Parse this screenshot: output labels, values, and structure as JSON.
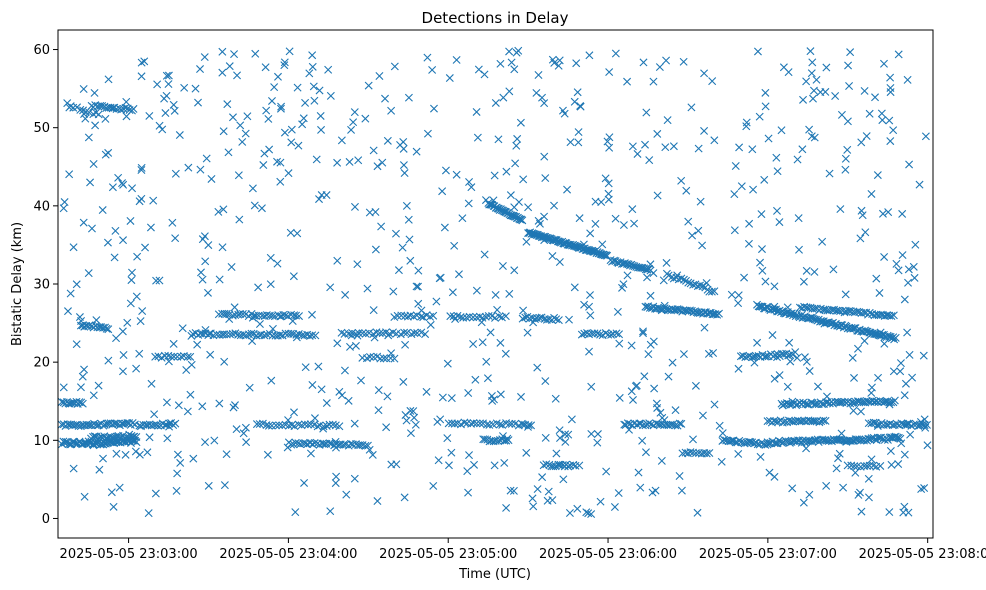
{
  "chart_data": {
    "type": "scatter",
    "title": "Detections in Delay",
    "xlabel": "Time (UTC)",
    "ylabel": "Bistatic Delay (km)",
    "marker": "x",
    "color": "#1f77b4",
    "x_unit": "seconds since 2025-05-05 23:02:00 UTC",
    "xlim": [
      33.5,
      362
    ],
    "ylim": [
      -2.5,
      62.5
    ],
    "x_ticks": [
      {
        "value": 60,
        "label": "2025-05-05 23:03:00"
      },
      {
        "value": 120,
        "label": "2025-05-05 23:04:00"
      },
      {
        "value": 180,
        "label": "2025-05-05 23:05:00"
      },
      {
        "value": 240,
        "label": "2025-05-05 23:06:00"
      },
      {
        "value": 300,
        "label": "2025-05-05 23:07:00"
      },
      {
        "value": 360,
        "label": "2025-05-05 23:08:00"
      }
    ],
    "y_ticks": [
      {
        "value": 0,
        "label": "0"
      },
      {
        "value": 10,
        "label": "10"
      },
      {
        "value": 20,
        "label": "20"
      },
      {
        "value": 30,
        "label": "30"
      },
      {
        "value": 40,
        "label": "40"
      },
      {
        "value": 50,
        "label": "50"
      },
      {
        "value": 60,
        "label": "60"
      }
    ],
    "tracks": [
      {
        "t0": 35,
        "t1": 63,
        "y0": 9.6,
        "y1": 9.8,
        "step": 0.5,
        "jitter": 0.5
      },
      {
        "t0": 46,
        "t1": 63,
        "y0": 10.3,
        "y1": 10.5,
        "step": 0.6,
        "jitter": 0.4
      },
      {
        "t0": 35,
        "t1": 63,
        "y0": 11.9,
        "y1": 12.1,
        "step": 0.7,
        "jitter": 0.3
      },
      {
        "t0": 35,
        "t1": 43,
        "y0": 14.8,
        "y1": 14.8,
        "step": 0.6,
        "jitter": 0.3
      },
      {
        "t0": 42,
        "t1": 53,
        "y0": 24.7,
        "y1": 24.3,
        "step": 0.7,
        "jitter": 0.3
      },
      {
        "t0": 46,
        "t1": 62,
        "y0": 52.8,
        "y1": 52.3,
        "step": 0.8,
        "jitter": 0.3
      },
      {
        "t0": 37,
        "t1": 50,
        "y0": 53.0,
        "y1": 51.5,
        "step": 1.2,
        "jitter": 0.4
      },
      {
        "t0": 64,
        "t1": 78,
        "y0": 11.9,
        "y1": 12.1,
        "step": 0.8,
        "jitter": 0.3
      },
      {
        "t0": 70,
        "t1": 84,
        "y0": 20.7,
        "y1": 20.7,
        "step": 1.2,
        "jitter": 0.3
      },
      {
        "t0": 84,
        "t1": 130,
        "y0": 23.6,
        "y1": 23.5,
        "step": 1.0,
        "jitter": 0.3
      },
      {
        "t0": 94,
        "t1": 124,
        "y0": 26.1,
        "y1": 25.9,
        "step": 1.0,
        "jitter": 0.3
      },
      {
        "t0": 120,
        "t1": 150,
        "y0": 9.6,
        "y1": 9.4,
        "step": 0.9,
        "jitter": 0.3
      },
      {
        "t0": 108,
        "t1": 140,
        "y0": 12.0,
        "y1": 11.9,
        "step": 1.2,
        "jitter": 0.3
      },
      {
        "t0": 140,
        "t1": 172,
        "y0": 23.7,
        "y1": 23.7,
        "step": 1.3,
        "jitter": 0.3
      },
      {
        "t0": 148,
        "t1": 160,
        "y0": 20.6,
        "y1": 20.6,
        "step": 1.3,
        "jitter": 0.3
      },
      {
        "t0": 160,
        "t1": 175,
        "y0": 25.9,
        "y1": 25.9,
        "step": 1.2,
        "jitter": 0.3
      },
      {
        "t0": 180,
        "t1": 212,
        "y0": 12.2,
        "y1": 12.0,
        "step": 1.2,
        "jitter": 0.3
      },
      {
        "t0": 181,
        "t1": 202,
        "y0": 25.8,
        "y1": 25.8,
        "step": 1.2,
        "jitter": 0.3
      },
      {
        "t0": 193,
        "t1": 203,
        "y0": 10.0,
        "y1": 10.0,
        "step": 0.8,
        "jitter": 0.3
      },
      {
        "t0": 195,
        "t1": 208,
        "y0": 40.3,
        "y1": 38.1,
        "step": 0.4,
        "jitter": 0.2
      },
      {
        "t0": 210,
        "t1": 240,
        "y0": 36.6,
        "y1": 33.6,
        "step": 0.4,
        "jitter": 0.2
      },
      {
        "t0": 216,
        "t1": 228,
        "y0": 6.8,
        "y1": 6.8,
        "step": 0.9,
        "jitter": 0.3
      },
      {
        "t0": 208,
        "t1": 222,
        "y0": 25.7,
        "y1": 25.5,
        "step": 0.9,
        "jitter": 0.3
      },
      {
        "t0": 230,
        "t1": 244,
        "y0": 23.6,
        "y1": 23.6,
        "step": 1.0,
        "jitter": 0.3
      },
      {
        "t0": 246,
        "t1": 268,
        "y0": 12.1,
        "y1": 12.0,
        "step": 0.8,
        "jitter": 0.3
      },
      {
        "t0": 241,
        "t1": 256,
        "y0": 33.0,
        "y1": 31.8,
        "step": 0.6,
        "jitter": 0.2
      },
      {
        "t0": 254,
        "t1": 282,
        "y0": 27.1,
        "y1": 26.1,
        "step": 0.6,
        "jitter": 0.3
      },
      {
        "t0": 262,
        "t1": 280,
        "y0": 31.2,
        "y1": 29.0,
        "step": 0.9,
        "jitter": 0.4
      },
      {
        "t0": 268,
        "t1": 278,
        "y0": 8.4,
        "y1": 8.4,
        "step": 1.0,
        "jitter": 0.2
      },
      {
        "t0": 283,
        "t1": 300,
        "y0": 10.0,
        "y1": 9.5,
        "step": 0.7,
        "jitter": 0.3
      },
      {
        "t0": 290,
        "t1": 310,
        "y0": 20.7,
        "y1": 21.0,
        "step": 0.8,
        "jitter": 0.3
      },
      {
        "t0": 296,
        "t1": 348,
        "y0": 27.2,
        "y1": 23.0,
        "step": 0.5,
        "jitter": 0.3
      },
      {
        "t0": 312,
        "t1": 348,
        "y0": 27.0,
        "y1": 25.9,
        "step": 0.8,
        "jitter": 0.3
      },
      {
        "t0": 300,
        "t1": 350,
        "y0": 9.7,
        "y1": 10.3,
        "step": 0.6,
        "jitter": 0.4
      },
      {
        "t0": 300,
        "t1": 322,
        "y0": 12.4,
        "y1": 12.4,
        "step": 0.8,
        "jitter": 0.3
      },
      {
        "t0": 305,
        "t1": 348,
        "y0": 14.6,
        "y1": 15.0,
        "step": 0.7,
        "jitter": 0.3
      },
      {
        "t0": 338,
        "t1": 360,
        "y0": 12.2,
        "y1": 11.9,
        "step": 0.8,
        "jitter": 0.3
      },
      {
        "t0": 330,
        "t1": 342,
        "y0": 6.7,
        "y1": 6.7,
        "step": 1.2,
        "jitter": 0.2
      }
    ],
    "clutter": {
      "count": 820,
      "t_range": [
        35,
        360
      ],
      "y_range": [
        0.5,
        60
      ]
    }
  }
}
